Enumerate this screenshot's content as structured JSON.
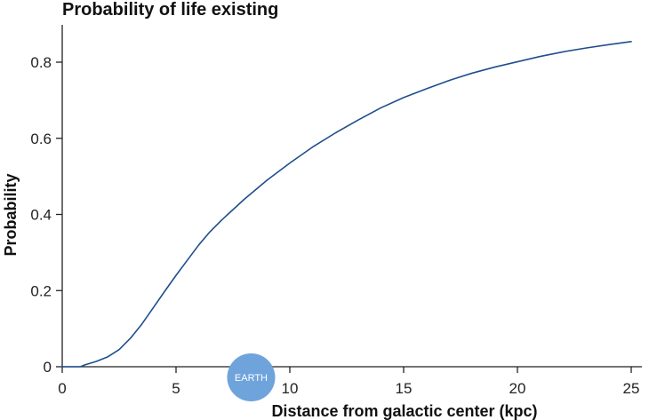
{
  "chart_data": {
    "type": "line",
    "title": "Probability of life existing",
    "xlabel": "Distance from galactic center (kpc)",
    "ylabel": "Probability",
    "xlim": [
      0,
      25
    ],
    "ylim": [
      0,
      0.9
    ],
    "x_ticks": [
      0,
      5,
      10,
      15,
      20,
      25
    ],
    "x_tick_labels": [
      "0",
      "5",
      "10",
      "15",
      "20",
      "25"
    ],
    "y_ticks": [
      0,
      0.2,
      0.4,
      0.6,
      0.8
    ],
    "y_tick_labels": [
      "0",
      "0.2",
      "0.4",
      "0.6",
      "0.8"
    ],
    "grid": false,
    "legend": "none",
    "series": [
      {
        "color": "#1f4e8c",
        "x": [
          0,
          0.8,
          1,
          1.5,
          2,
          2.5,
          3,
          3.5,
          4,
          4.5,
          5,
          5.5,
          6,
          6.5,
          7,
          8,
          9,
          10,
          11,
          12,
          13,
          14,
          15,
          16,
          17,
          18,
          19,
          20,
          21,
          22,
          23,
          24,
          25
        ],
        "y": [
          0,
          0,
          0.005,
          0.014,
          0.026,
          0.045,
          0.075,
          0.112,
          0.155,
          0.198,
          0.24,
          0.28,
          0.32,
          0.355,
          0.385,
          0.44,
          0.49,
          0.535,
          0.577,
          0.614,
          0.648,
          0.68,
          0.707,
          0.73,
          0.752,
          0.771,
          0.787,
          0.801,
          0.815,
          0.827,
          0.837,
          0.846,
          0.854
        ]
      }
    ],
    "annotations": [
      {
        "text": "EARTH",
        "x": 8.3,
        "y": 0,
        "color": "#6fa3dc"
      }
    ],
    "axis_color": "#222222"
  }
}
